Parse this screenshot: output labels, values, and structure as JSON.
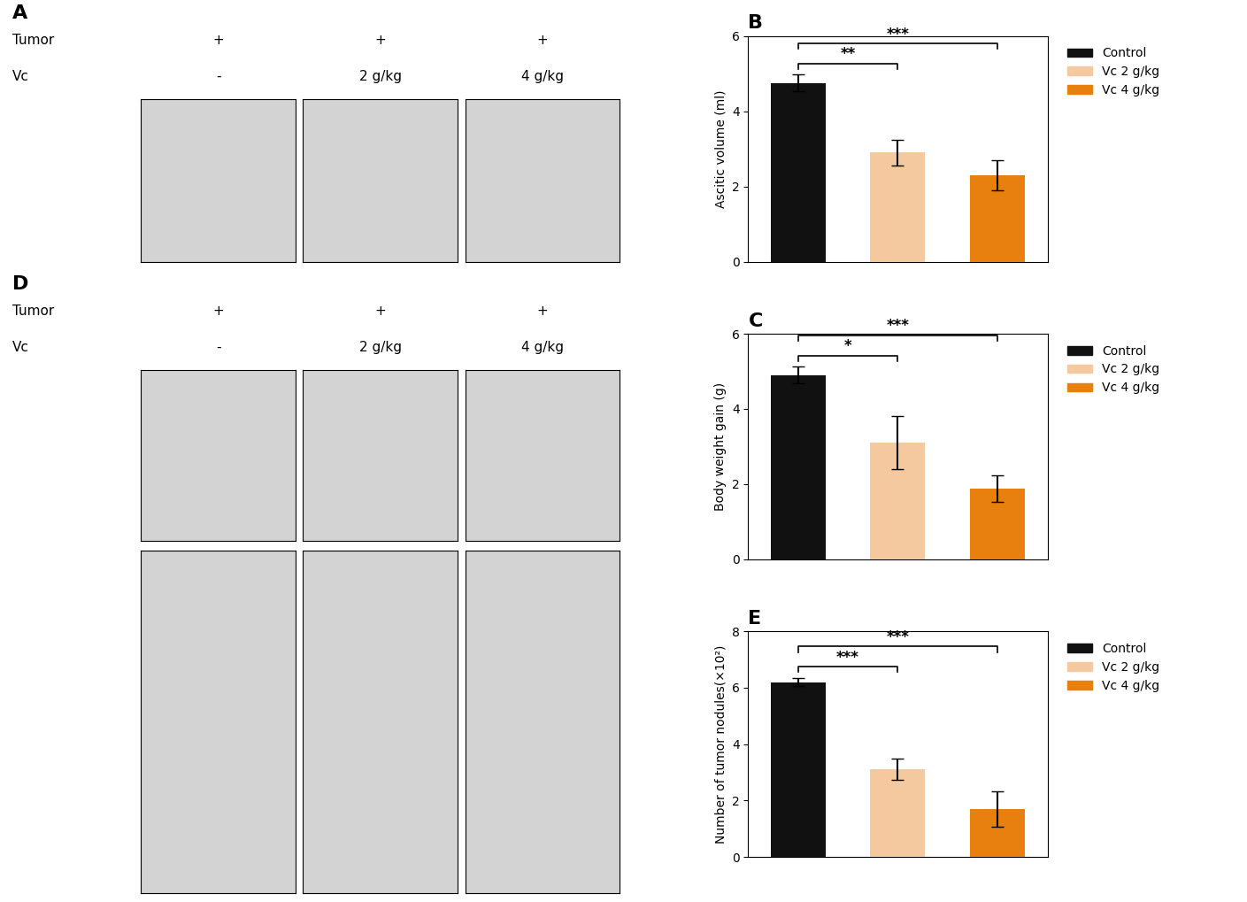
{
  "chart_data": [
    {
      "type": "image_panel",
      "title": "A",
      "row_labels": [
        "Tumor",
        "Vc"
      ],
      "cells": [
        [
          "+",
          "+",
          "+"
        ],
        [
          "-",
          "2 g/kg",
          "4 g/kg"
        ]
      ]
    },
    {
      "type": "bar",
      "title": "B",
      "categories": [
        "Control",
        "Vc 2 g/kg",
        "Vc 4 g/kg"
      ],
      "values": [
        4.75,
        2.9,
        2.3
      ],
      "errors": [
        0.22,
        0.35,
        0.4
      ],
      "colors": [
        "#111111",
        "#f5c9a0",
        "#e88010"
      ],
      "ylabel": "Ascitic volume (ml)",
      "ylim": [
        0,
        6
      ],
      "yticks": [
        0,
        2,
        4,
        6
      ],
      "tick_labels": "y",
      "legend": "upper left",
      "annotations": [
        {
          "text": "**",
          "between": [
            "Control",
            "Vc 2 g/kg"
          ]
        },
        {
          "text": "***",
          "between": [
            "Control",
            "Vc 4 g/kg"
          ]
        }
      ]
    },
    {
      "type": "bar",
      "title": "C",
      "categories": [
        "Control",
        "Vc 2 g/kg",
        "Vc 4 g/kg"
      ],
      "values": [
        4.9,
        3.1,
        1.88
      ],
      "errors": [
        0.22,
        0.7,
        0.35
      ],
      "colors": [
        "#111111",
        "#f5c9a0",
        "#e88010"
      ],
      "ylabel": "Body weight gain (g)",
      "ylim": [
        0,
        6
      ],
      "yticks": [
        0,
        2,
        4,
        6
      ],
      "tick_labels": "y",
      "legend": "upper left",
      "annotations": [
        {
          "text": "*",
          "between": [
            "Control",
            "Vc 2 g/kg"
          ]
        },
        {
          "text": "***",
          "between": [
            "Control",
            "Vc 4 g/kg"
          ]
        }
      ]
    },
    {
      "type": "image_panel",
      "title": "D",
      "row_labels": [
        "Tumor",
        "Vc"
      ],
      "cells": [
        [
          "+",
          "+",
          "+"
        ],
        [
          "-",
          "2 g/kg",
          "4 g/kg"
        ]
      ]
    },
    {
      "type": "bar",
      "title": "E",
      "categories": [
        "Control",
        "Vc 2 g/kg",
        "Vc 4 g/kg"
      ],
      "values": [
        6.2,
        3.1,
        1.7
      ],
      "errors": [
        0.15,
        0.38,
        0.62
      ],
      "colors": [
        "#111111",
        "#f5c9a0",
        "#e88010"
      ],
      "ylabel": "Number of tumor nodules(×10²)",
      "ylim": [
        0,
        8
      ],
      "yticks": [
        0,
        2,
        4,
        6,
        8
      ],
      "tick_labels": "y",
      "legend": "upper left",
      "annotations": [
        {
          "text": "***",
          "between": [
            "Control",
            "Vc 2 g/kg"
          ]
        },
        {
          "text": "***",
          "between": [
            "Control",
            "Vc 4 g/kg"
          ]
        }
      ]
    }
  ]
}
